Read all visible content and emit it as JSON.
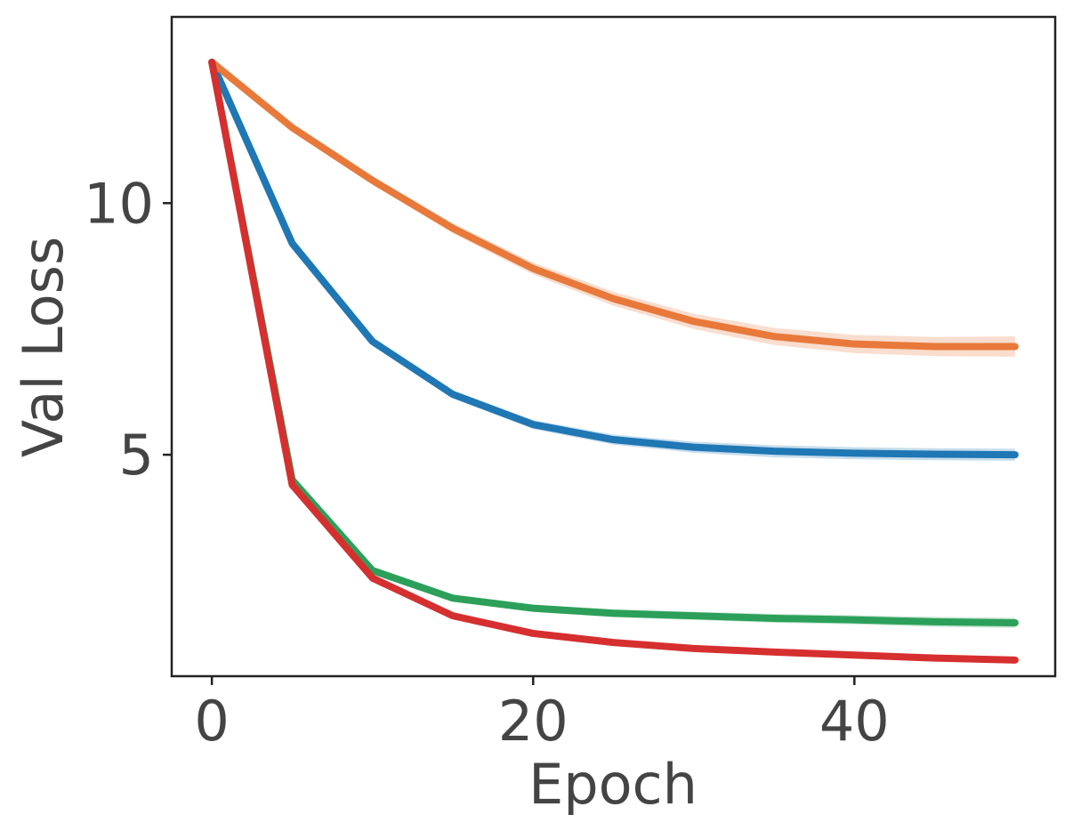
{
  "chart_data": {
    "type": "line",
    "title": "",
    "xlabel": "Epoch",
    "ylabel": "Val Loss",
    "xlim": [
      -2.5,
      52.5
    ],
    "ylim": [
      0.6,
      13.7
    ],
    "x_ticks": [
      0,
      20,
      40
    ],
    "y_ticks": [
      5,
      10
    ],
    "x_tick_labels": [
      "0",
      "20",
      "40"
    ],
    "y_tick_labels": [
      "5",
      "10"
    ],
    "grid": false,
    "legend": false,
    "x": [
      0,
      5,
      10,
      15,
      20,
      25,
      30,
      35,
      40,
      45,
      50
    ],
    "series": [
      {
        "color": "#1f77b4",
        "values": [
          12.8,
          9.2,
          7.25,
          6.2,
          5.6,
          5.3,
          5.15,
          5.07,
          5.03,
          5.01,
          5.0
        ],
        "band": [
          0.0,
          0.05,
          0.07,
          0.08,
          0.09,
          0.1,
          0.11,
          0.12,
          0.12,
          0.12,
          0.12
        ]
      },
      {
        "color": "#e8793a",
        "values": [
          12.8,
          11.5,
          10.45,
          9.5,
          8.7,
          8.1,
          7.65,
          7.35,
          7.2,
          7.15,
          7.15
        ],
        "band": [
          0.0,
          0.05,
          0.08,
          0.1,
          0.12,
          0.14,
          0.15,
          0.17,
          0.18,
          0.19,
          0.2
        ]
      },
      {
        "color": "#2ca05a",
        "values": [
          12.8,
          4.5,
          2.7,
          2.15,
          1.95,
          1.85,
          1.8,
          1.75,
          1.72,
          1.68,
          1.66
        ],
        "band": [
          0.0,
          0.04,
          0.05,
          0.06,
          0.07,
          0.08,
          0.08,
          0.09,
          0.09,
          0.1,
          0.1
        ]
      },
      {
        "color": "#d62f2f",
        "values": [
          12.8,
          4.4,
          2.55,
          1.8,
          1.45,
          1.27,
          1.15,
          1.08,
          1.02,
          0.96,
          0.92
        ],
        "band": [
          0.0,
          0.03,
          0.04,
          0.04,
          0.05,
          0.05,
          0.05,
          0.05,
          0.05,
          0.05,
          0.05
        ]
      }
    ]
  }
}
